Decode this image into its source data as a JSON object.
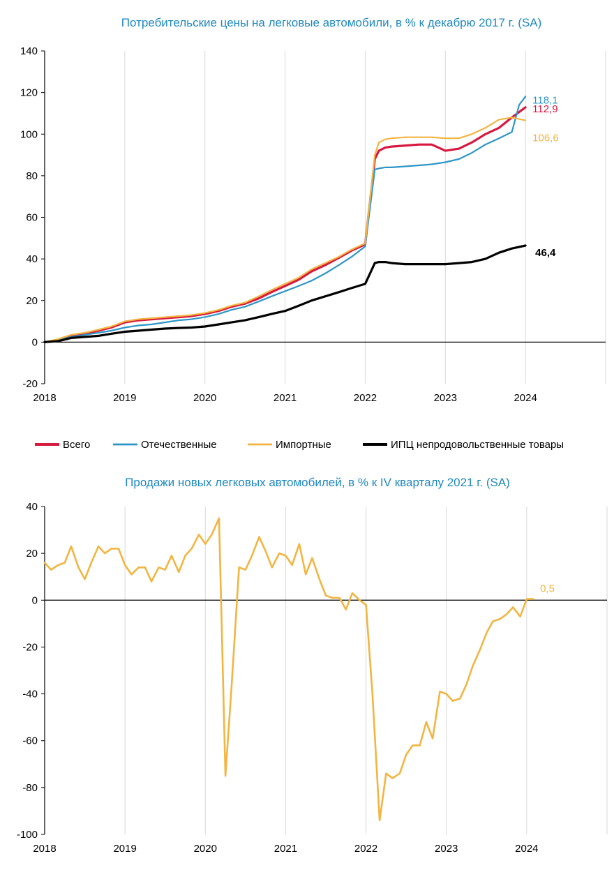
{
  "colors": {
    "title": "#1f88bf",
    "total": "#d7183f",
    "domestic": "#2d96c8",
    "imported": "#f2b542",
    "cpi": "#000000"
  },
  "chart_data": [
    {
      "type": "line",
      "title": "Потребительские цены на легковые автомобили, в % к декабрю 2017 г. (SA)",
      "xlabel": "",
      "ylabel": "",
      "xlim": [
        2018,
        2025
      ],
      "ylim": [
        -20,
        140
      ],
      "x_ticks": [
        "2018",
        "2019",
        "2020",
        "2021",
        "2022",
        "2023",
        "2024"
      ],
      "y_ticks": [
        "-20",
        "0",
        "20",
        "40",
        "60",
        "80",
        "100",
        "120",
        "140"
      ],
      "grid": "vertical",
      "legend": {
        "position": "bottom",
        "items": [
          "Всего",
          "Отечественные",
          "Импортные",
          "ИПЦ непродовольственные товары"
        ]
      },
      "series": [
        {
          "name": "Всего",
          "color_key": "total",
          "end_label": "112,9",
          "x": [
            2018.0,
            2018.17,
            2018.33,
            2018.5,
            2018.67,
            2018.83,
            2019.0,
            2019.17,
            2019.33,
            2019.5,
            2019.67,
            2019.83,
            2020.0,
            2020.17,
            2020.33,
            2020.5,
            2020.67,
            2020.83,
            2021.0,
            2021.17,
            2021.33,
            2021.5,
            2021.67,
            2021.83,
            2022.0,
            2022.12,
            2022.17,
            2022.25,
            2022.33,
            2022.5,
            2022.67,
            2022.83,
            2023.0,
            2023.17,
            2023.33,
            2023.5,
            2023.67,
            2023.83,
            2024.0
          ],
          "y": [
            0,
            1,
            3,
            4,
            5.5,
            7,
            9.5,
            10.5,
            11,
            11.5,
            12,
            12.5,
            13.5,
            15,
            17,
            18.5,
            21,
            24,
            27,
            30,
            34,
            37,
            40.5,
            44,
            47,
            88,
            92,
            93.5,
            94,
            94.5,
            95,
            95,
            92,
            93,
            96,
            100,
            103,
            108,
            112.9
          ]
        },
        {
          "name": "Отечественные",
          "color_key": "domestic",
          "end_label": "118,1",
          "x": [
            2018.0,
            2018.17,
            2018.33,
            2018.5,
            2018.67,
            2018.83,
            2019.0,
            2019.17,
            2019.33,
            2019.5,
            2019.67,
            2019.83,
            2020.0,
            2020.17,
            2020.33,
            2020.5,
            2020.67,
            2020.83,
            2021.0,
            2021.17,
            2021.33,
            2021.5,
            2021.67,
            2021.83,
            2022.0,
            2022.12,
            2022.17,
            2022.25,
            2022.33,
            2022.5,
            2022.67,
            2022.83,
            2023.0,
            2023.17,
            2023.33,
            2023.5,
            2023.67,
            2023.83,
            2023.92,
            2024.0
          ],
          "y": [
            0,
            1,
            2.5,
            3.5,
            4.5,
            5.5,
            7,
            8,
            8.5,
            9.5,
            10.5,
            11,
            12,
            13.5,
            15.5,
            17,
            19.5,
            22,
            24.5,
            27,
            29.5,
            33,
            37,
            41,
            46,
            83,
            83.5,
            84,
            84,
            84.5,
            85,
            85.5,
            86.5,
            88,
            91,
            95,
            98,
            101,
            114,
            118.1
          ]
        },
        {
          "name": "Импортные",
          "color_key": "imported",
          "end_label": "106,6",
          "x": [
            2018.0,
            2018.17,
            2018.33,
            2018.5,
            2018.67,
            2018.83,
            2019.0,
            2019.17,
            2019.33,
            2019.5,
            2019.67,
            2019.83,
            2020.0,
            2020.17,
            2020.33,
            2020.5,
            2020.67,
            2020.83,
            2021.0,
            2021.17,
            2021.33,
            2021.5,
            2021.67,
            2021.83,
            2022.0,
            2022.12,
            2022.17,
            2022.25,
            2022.33,
            2022.5,
            2022.67,
            2022.83,
            2023.0,
            2023.17,
            2023.33,
            2023.5,
            2023.67,
            2023.83,
            2024.0
          ],
          "y": [
            0,
            1.5,
            3.5,
            4.5,
            6,
            7.5,
            10,
            11,
            11.5,
            12,
            12.5,
            13,
            14,
            15.5,
            17.5,
            19,
            22,
            25,
            28,
            31,
            35,
            38,
            41,
            44.5,
            47.5,
            90,
            96,
            97.5,
            98,
            98.5,
            98.5,
            98.5,
            98,
            98,
            100,
            103,
            107,
            108,
            106.6
          ]
        },
        {
          "name": "ИПЦ непродовольственные товары",
          "color_key": "cpi",
          "end_label": "46,4",
          "x": [
            2018.0,
            2018.17,
            2018.33,
            2018.5,
            2018.67,
            2018.83,
            2019.0,
            2019.17,
            2019.33,
            2019.5,
            2019.67,
            2019.83,
            2020.0,
            2020.17,
            2020.33,
            2020.5,
            2020.67,
            2020.83,
            2021.0,
            2021.17,
            2021.33,
            2021.5,
            2021.67,
            2021.83,
            2022.0,
            2022.12,
            2022.17,
            2022.25,
            2022.33,
            2022.5,
            2022.67,
            2022.83,
            2023.0,
            2023.17,
            2023.33,
            2023.5,
            2023.67,
            2023.83,
            2024.0
          ],
          "y": [
            0,
            0.5,
            2,
            2.5,
            3,
            4,
            5,
            5.5,
            6,
            6.5,
            6.8,
            7,
            7.5,
            8.5,
            9.5,
            10.5,
            12,
            13.5,
            15,
            17.5,
            20,
            22,
            24,
            26,
            28,
            38,
            38.5,
            38.5,
            38,
            37.5,
            37.5,
            37.5,
            37.5,
            38,
            38.5,
            40,
            43,
            45,
            46.4
          ]
        }
      ]
    },
    {
      "type": "line",
      "title": "Продажи новых легковых автомобилей, в % к IV кварталу 2021 г. (SA)",
      "xlabel": "",
      "ylabel": "",
      "xlim": [
        2018,
        2025
      ],
      "ylim": [
        -100,
        40
      ],
      "x_ticks": [
        "2018",
        "2019",
        "2020",
        "2021",
        "2022",
        "2023",
        "2024"
      ],
      "y_ticks": [
        "-100",
        "-80",
        "-60",
        "-40",
        "-20",
        "0",
        "20",
        "40"
      ],
      "grid": "vertical",
      "series": [
        {
          "color_key": "imported",
          "end_label": "0,5",
          "x": [
            2018.0,
            2018.08,
            2018.17,
            2018.25,
            2018.33,
            2018.42,
            2018.5,
            2018.58,
            2018.67,
            2018.75,
            2018.83,
            2018.92,
            2019.0,
            2019.08,
            2019.17,
            2019.25,
            2019.33,
            2019.42,
            2019.5,
            2019.58,
            2019.67,
            2019.75,
            2019.83,
            2019.92,
            2020.0,
            2020.08,
            2020.17,
            2020.25,
            2020.33,
            2020.42,
            2020.5,
            2020.58,
            2020.67,
            2020.75,
            2020.83,
            2020.92,
            2021.0,
            2021.08,
            2021.17,
            2021.25,
            2021.33,
            2021.42,
            2021.5,
            2021.58,
            2021.67,
            2021.75,
            2021.83,
            2021.92,
            2022.0,
            2022.08,
            2022.17,
            2022.25,
            2022.33,
            2022.42,
            2022.5,
            2022.58,
            2022.67,
            2022.75,
            2022.83,
            2022.92,
            2023.0,
            2023.08,
            2023.17,
            2023.25,
            2023.33,
            2023.42,
            2023.5,
            2023.58,
            2023.67,
            2023.75,
            2023.83,
            2023.92,
            2024.0,
            2024.08
          ],
          "y": [
            16,
            13,
            15,
            16,
            23,
            14,
            9,
            16,
            23,
            20,
            22,
            22,
            15,
            11,
            14,
            14,
            8,
            14,
            13,
            19,
            12,
            19,
            22,
            28,
            24,
            28,
            35,
            -75,
            -35,
            14,
            13,
            19,
            27,
            21,
            14,
            20,
            19,
            15,
            24,
            11,
            18,
            9,
            2,
            1,
            1,
            -4,
            3,
            0,
            -2,
            -40,
            -94,
            -74,
            -76,
            -74,
            -66,
            -62,
            -62,
            -52,
            -59,
            -39,
            -40,
            -43,
            -42,
            -36,
            -28,
            -21,
            -14,
            -9,
            -8,
            -6,
            -3,
            -7,
            0.5,
            0.5
          ]
        }
      ]
    }
  ]
}
